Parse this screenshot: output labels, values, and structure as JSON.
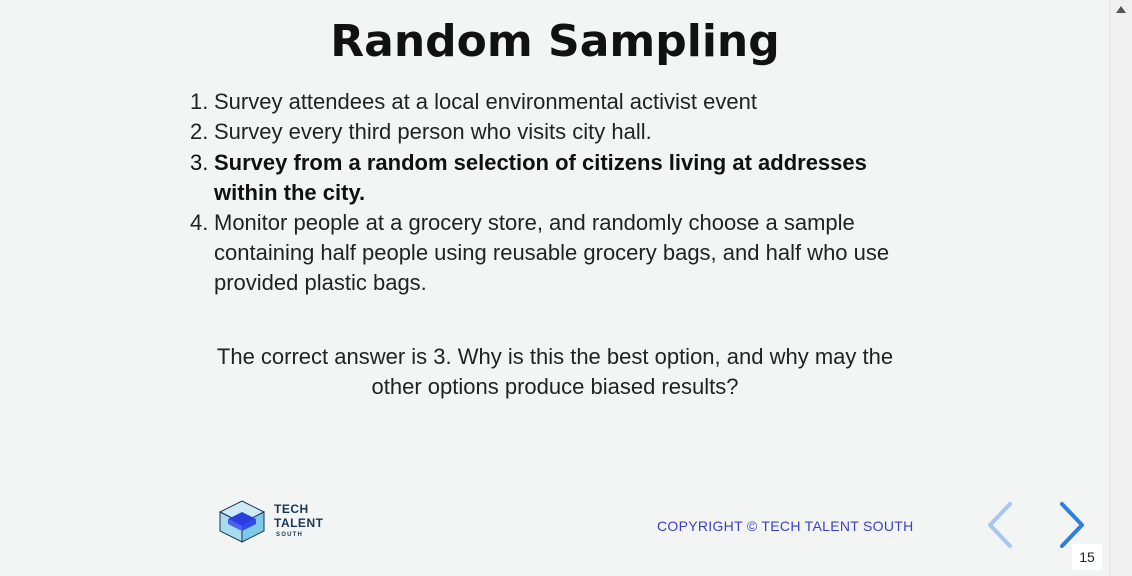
{
  "slide": {
    "title": "Random Sampling",
    "options": [
      {
        "number": "1.",
        "text": "Survey attendees at a local environmental activist event",
        "emphasized": false
      },
      {
        "number": "2.",
        "text": "Survey every third person who visits city hall.",
        "emphasized": false
      },
      {
        "number": "3.",
        "text": "Survey from a random selection of citizens living at addresses within the city.",
        "emphasized": true
      },
      {
        "number": "4.",
        "text": "Monitor people at a grocery store, and randomly choose a sample containing half people using reusable grocery bags, and half who use provided plastic bags.",
        "emphasized": false
      }
    ],
    "answer": "The correct answer is 3. Why is this the best option, and why may the other options produce biased results?"
  },
  "footer": {
    "logo": {
      "line1": "TECH",
      "line2": "TALENT",
      "line3": "SOUTH"
    },
    "copyright": "COPYRIGHT © TECH TALENT SOUTH",
    "page_number": "15"
  },
  "nav": {
    "prev_icon": "chevron-left-icon",
    "next_icon": "chevron-right-icon",
    "prev_color": "#a9c6ee",
    "next_color": "#2f7fdc"
  },
  "colors": {
    "background": "#f3f5f4",
    "copyright": "#3b3fc4",
    "logo_text": "#1a3556"
  }
}
